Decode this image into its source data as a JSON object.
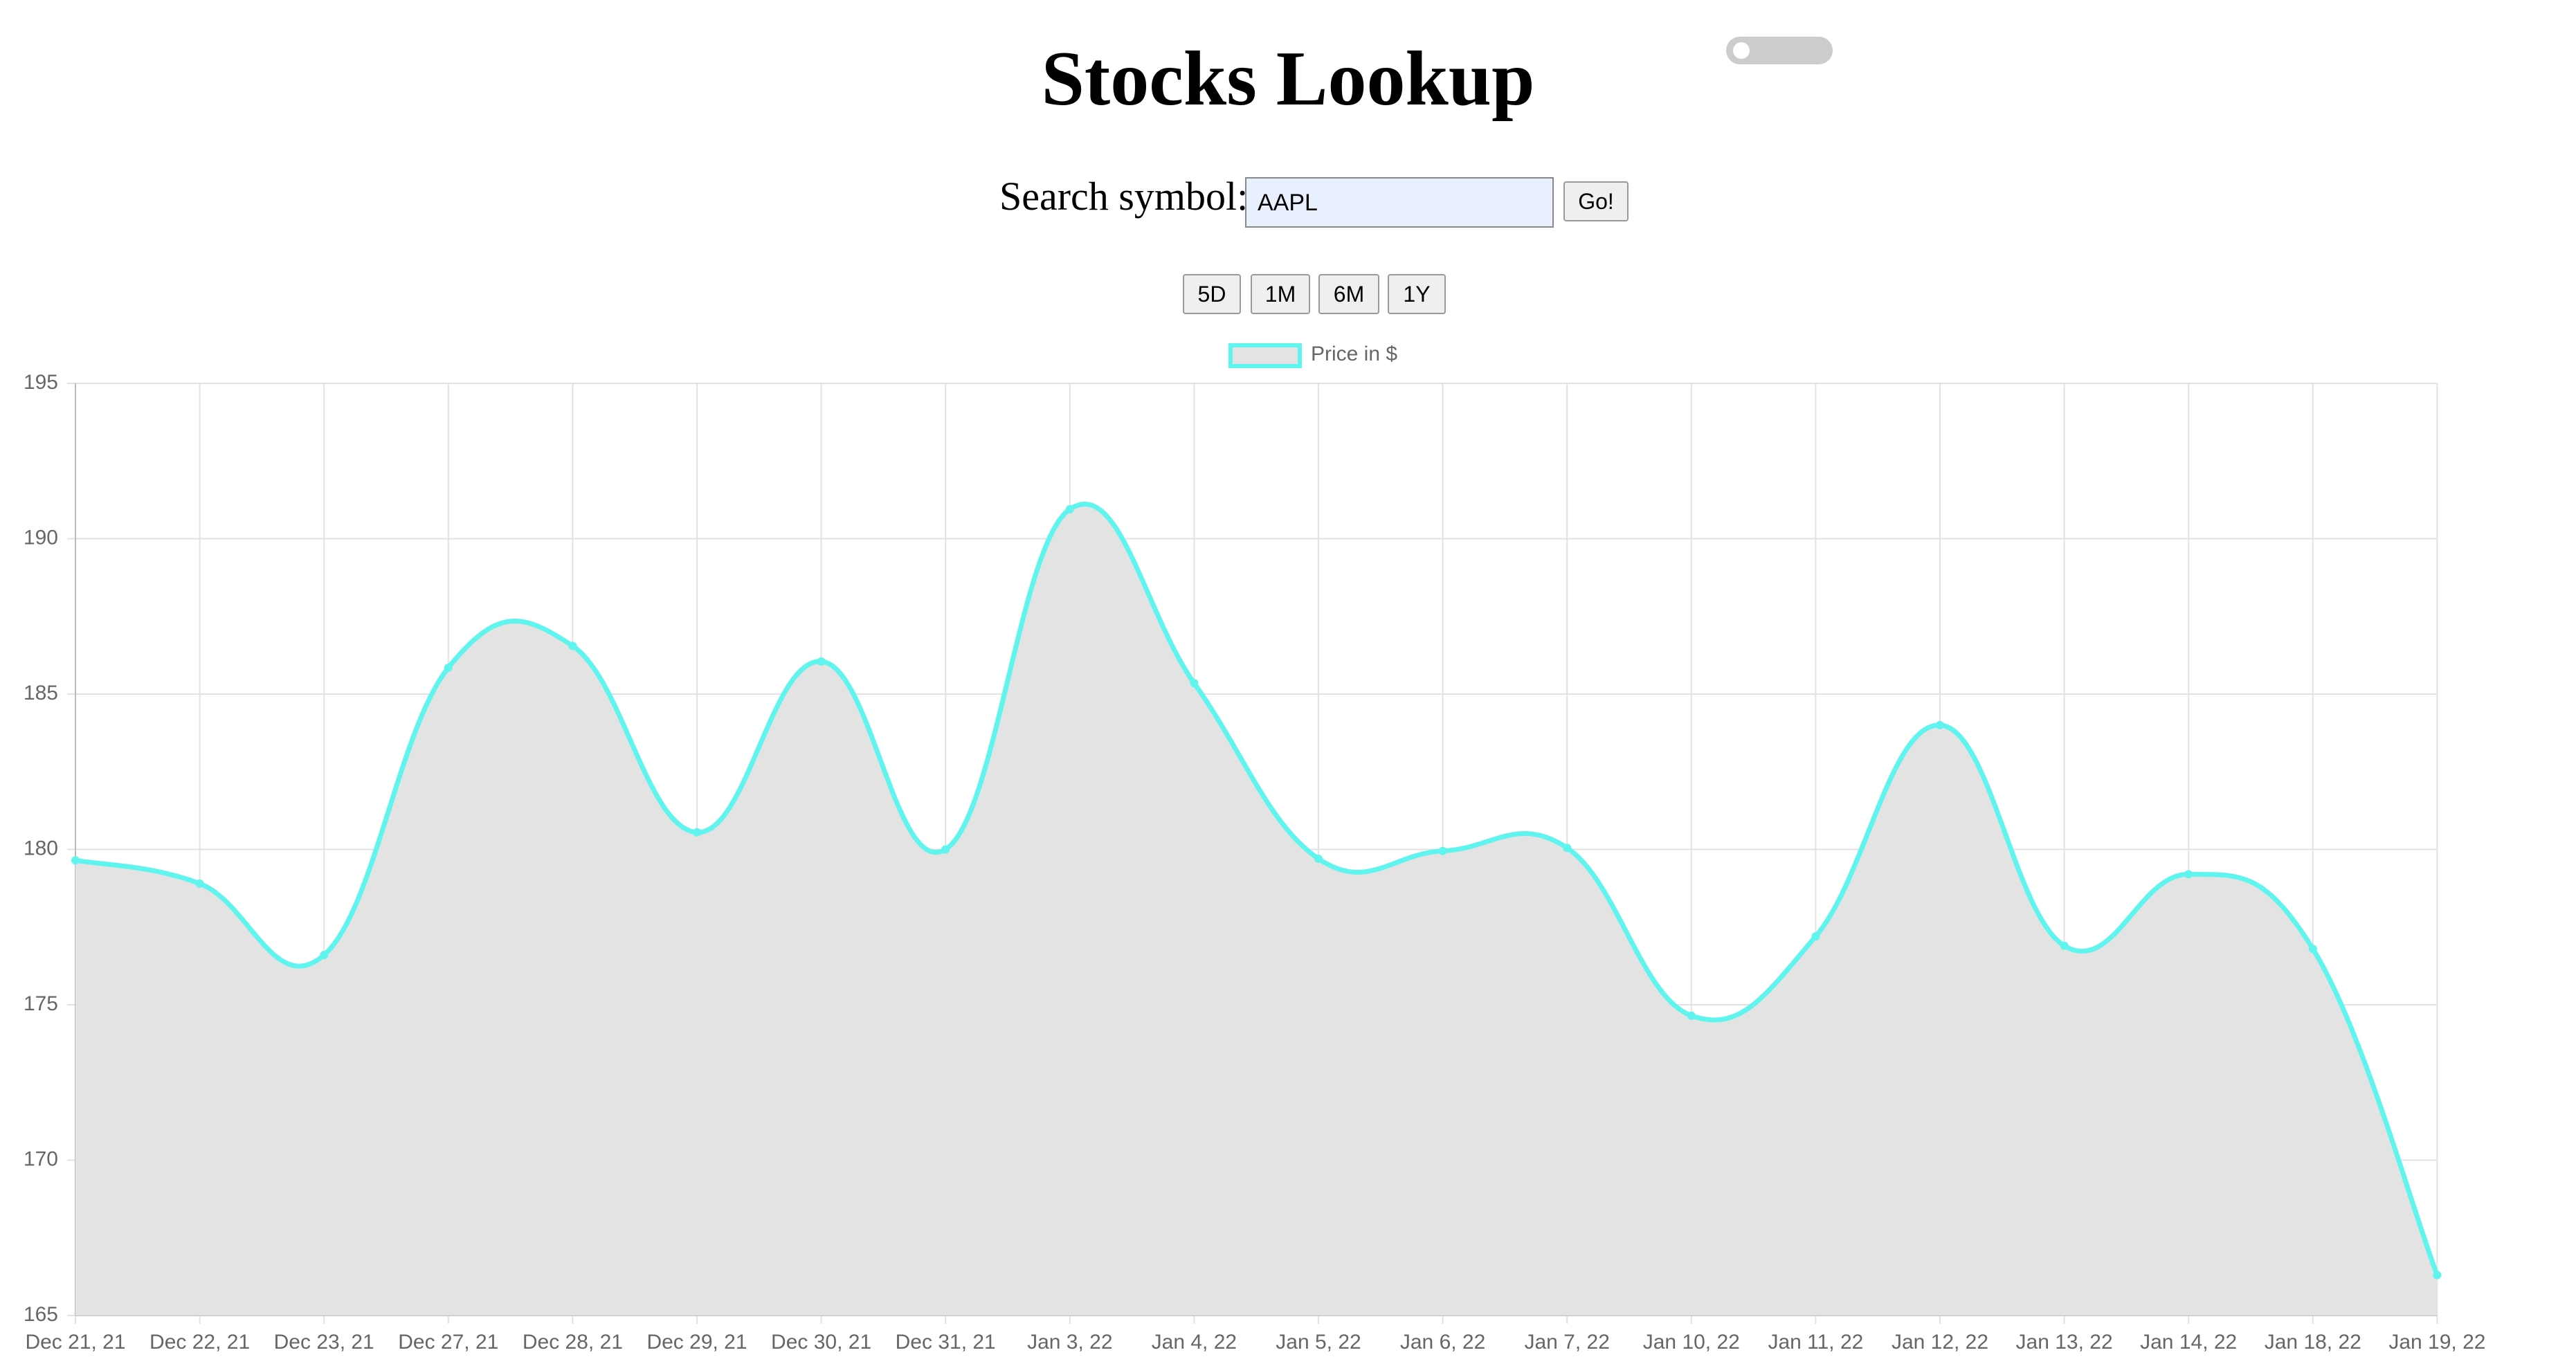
{
  "header": {
    "title": "Stocks Lookup"
  },
  "search": {
    "label": "Search symbol:",
    "value": "AAPL",
    "button": "Go!"
  },
  "ranges": [
    "5D",
    "1M",
    "6M",
    "1Y"
  ],
  "chart_data": {
    "type": "area",
    "categories": [
      "Dec 21, 21",
      "Dec 22, 21",
      "Dec 23, 21",
      "Dec 27, 21",
      "Dec 28, 21",
      "Dec 29, 21",
      "Dec 30, 21",
      "Dec 31, 21",
      "Jan 3, 22",
      "Jan 4, 22",
      "Jan 5, 22",
      "Jan 6, 22",
      "Jan 7, 22",
      "Jan 10, 22",
      "Jan 11, 22",
      "Jan 12, 22",
      "Jan 13, 22",
      "Jan 14, 22",
      "Jan 18, 22",
      "Jan 19, 22"
    ],
    "series": [
      {
        "name": "Price in $",
        "color": "#5ff5ee",
        "fill": "#e3e3e3",
        "values": [
          179.65,
          178.9,
          176.6,
          185.85,
          186.55,
          180.55,
          186.05,
          180.0,
          190.95,
          185.35,
          179.7,
          179.95,
          180.05,
          174.65,
          177.2,
          184.0,
          176.9,
          179.2,
          176.8,
          166.3
        ]
      }
    ],
    "ylim": [
      165,
      195
    ],
    "yticks": [
      165,
      170,
      175,
      180,
      185,
      190,
      195
    ],
    "grid": true,
    "legend": "top"
  }
}
